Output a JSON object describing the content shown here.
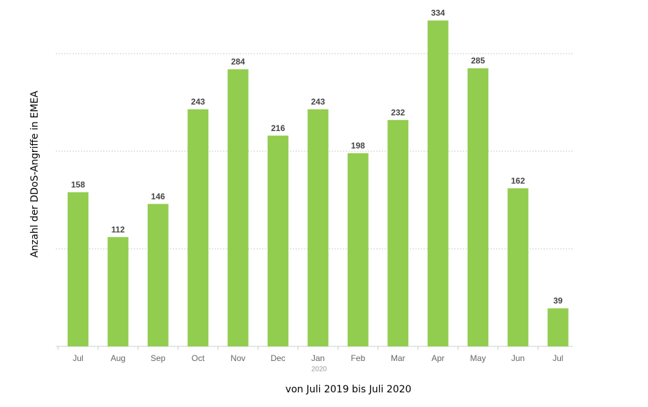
{
  "chart_data": {
    "type": "bar",
    "categories": [
      "Jul",
      "Aug",
      "Sep",
      "Oct",
      "Nov",
      "Dec",
      "Jan",
      "Feb",
      "Mar",
      "Apr",
      "May",
      "Jun",
      "Jul"
    ],
    "values": [
      158,
      112,
      146,
      243,
      284,
      216,
      243,
      198,
      232,
      334,
      285,
      162,
      39
    ],
    "color": "#92cd4f",
    "ylim": [
      0,
      350
    ],
    "yticks": [
      0,
      100,
      200,
      300
    ],
    "grid": true,
    "annotations": [
      "2020"
    ],
    "xlabel": "von Juli 2019 bis Juli 2020",
    "ylabel": "Anzahl der DDoS-Angriffe in EMEA"
  }
}
